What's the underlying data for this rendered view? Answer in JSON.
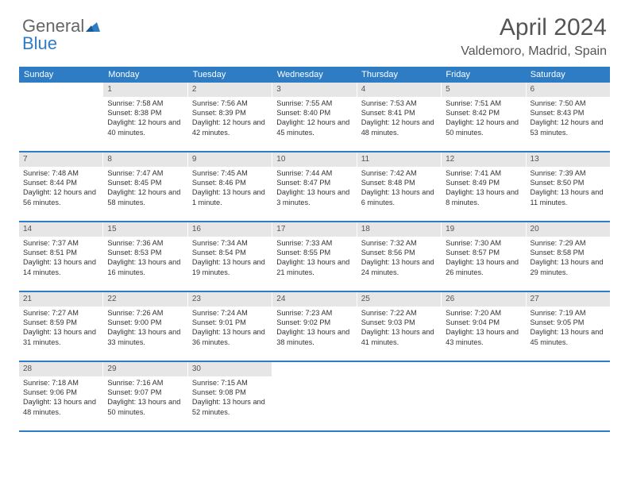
{
  "logo": {
    "part1": "General",
    "part2": "Blue"
  },
  "title": "April 2024",
  "location": "Valdemoro, Madrid, Spain",
  "dayHeaders": [
    "Sunday",
    "Monday",
    "Tuesday",
    "Wednesday",
    "Thursday",
    "Friday",
    "Saturday"
  ],
  "colors": {
    "brand": "#2e7cc4",
    "dayNumBg": "#e6e6e6",
    "text": "#333"
  },
  "weeks": [
    [
      {
        "n": "",
        "sr": "",
        "ss": "",
        "dl": ""
      },
      {
        "n": "1",
        "sr": "Sunrise: 7:58 AM",
        "ss": "Sunset: 8:38 PM",
        "dl": "Daylight: 12 hours and 40 minutes."
      },
      {
        "n": "2",
        "sr": "Sunrise: 7:56 AM",
        "ss": "Sunset: 8:39 PM",
        "dl": "Daylight: 12 hours and 42 minutes."
      },
      {
        "n": "3",
        "sr": "Sunrise: 7:55 AM",
        "ss": "Sunset: 8:40 PM",
        "dl": "Daylight: 12 hours and 45 minutes."
      },
      {
        "n": "4",
        "sr": "Sunrise: 7:53 AM",
        "ss": "Sunset: 8:41 PM",
        "dl": "Daylight: 12 hours and 48 minutes."
      },
      {
        "n": "5",
        "sr": "Sunrise: 7:51 AM",
        "ss": "Sunset: 8:42 PM",
        "dl": "Daylight: 12 hours and 50 minutes."
      },
      {
        "n": "6",
        "sr": "Sunrise: 7:50 AM",
        "ss": "Sunset: 8:43 PM",
        "dl": "Daylight: 12 hours and 53 minutes."
      }
    ],
    [
      {
        "n": "7",
        "sr": "Sunrise: 7:48 AM",
        "ss": "Sunset: 8:44 PM",
        "dl": "Daylight: 12 hours and 56 minutes."
      },
      {
        "n": "8",
        "sr": "Sunrise: 7:47 AM",
        "ss": "Sunset: 8:45 PM",
        "dl": "Daylight: 12 hours and 58 minutes."
      },
      {
        "n": "9",
        "sr": "Sunrise: 7:45 AM",
        "ss": "Sunset: 8:46 PM",
        "dl": "Daylight: 13 hours and 1 minute."
      },
      {
        "n": "10",
        "sr": "Sunrise: 7:44 AM",
        "ss": "Sunset: 8:47 PM",
        "dl": "Daylight: 13 hours and 3 minutes."
      },
      {
        "n": "11",
        "sr": "Sunrise: 7:42 AM",
        "ss": "Sunset: 8:48 PM",
        "dl": "Daylight: 13 hours and 6 minutes."
      },
      {
        "n": "12",
        "sr": "Sunrise: 7:41 AM",
        "ss": "Sunset: 8:49 PM",
        "dl": "Daylight: 13 hours and 8 minutes."
      },
      {
        "n": "13",
        "sr": "Sunrise: 7:39 AM",
        "ss": "Sunset: 8:50 PM",
        "dl": "Daylight: 13 hours and 11 minutes."
      }
    ],
    [
      {
        "n": "14",
        "sr": "Sunrise: 7:37 AM",
        "ss": "Sunset: 8:51 PM",
        "dl": "Daylight: 13 hours and 14 minutes."
      },
      {
        "n": "15",
        "sr": "Sunrise: 7:36 AM",
        "ss": "Sunset: 8:53 PM",
        "dl": "Daylight: 13 hours and 16 minutes."
      },
      {
        "n": "16",
        "sr": "Sunrise: 7:34 AM",
        "ss": "Sunset: 8:54 PM",
        "dl": "Daylight: 13 hours and 19 minutes."
      },
      {
        "n": "17",
        "sr": "Sunrise: 7:33 AM",
        "ss": "Sunset: 8:55 PM",
        "dl": "Daylight: 13 hours and 21 minutes."
      },
      {
        "n": "18",
        "sr": "Sunrise: 7:32 AM",
        "ss": "Sunset: 8:56 PM",
        "dl": "Daylight: 13 hours and 24 minutes."
      },
      {
        "n": "19",
        "sr": "Sunrise: 7:30 AM",
        "ss": "Sunset: 8:57 PM",
        "dl": "Daylight: 13 hours and 26 minutes."
      },
      {
        "n": "20",
        "sr": "Sunrise: 7:29 AM",
        "ss": "Sunset: 8:58 PM",
        "dl": "Daylight: 13 hours and 29 minutes."
      }
    ],
    [
      {
        "n": "21",
        "sr": "Sunrise: 7:27 AM",
        "ss": "Sunset: 8:59 PM",
        "dl": "Daylight: 13 hours and 31 minutes."
      },
      {
        "n": "22",
        "sr": "Sunrise: 7:26 AM",
        "ss": "Sunset: 9:00 PM",
        "dl": "Daylight: 13 hours and 33 minutes."
      },
      {
        "n": "23",
        "sr": "Sunrise: 7:24 AM",
        "ss": "Sunset: 9:01 PM",
        "dl": "Daylight: 13 hours and 36 minutes."
      },
      {
        "n": "24",
        "sr": "Sunrise: 7:23 AM",
        "ss": "Sunset: 9:02 PM",
        "dl": "Daylight: 13 hours and 38 minutes."
      },
      {
        "n": "25",
        "sr": "Sunrise: 7:22 AM",
        "ss": "Sunset: 9:03 PM",
        "dl": "Daylight: 13 hours and 41 minutes."
      },
      {
        "n": "26",
        "sr": "Sunrise: 7:20 AM",
        "ss": "Sunset: 9:04 PM",
        "dl": "Daylight: 13 hours and 43 minutes."
      },
      {
        "n": "27",
        "sr": "Sunrise: 7:19 AM",
        "ss": "Sunset: 9:05 PM",
        "dl": "Daylight: 13 hours and 45 minutes."
      }
    ],
    [
      {
        "n": "28",
        "sr": "Sunrise: 7:18 AM",
        "ss": "Sunset: 9:06 PM",
        "dl": "Daylight: 13 hours and 48 minutes."
      },
      {
        "n": "29",
        "sr": "Sunrise: 7:16 AM",
        "ss": "Sunset: 9:07 PM",
        "dl": "Daylight: 13 hours and 50 minutes."
      },
      {
        "n": "30",
        "sr": "Sunrise: 7:15 AM",
        "ss": "Sunset: 9:08 PM",
        "dl": "Daylight: 13 hours and 52 minutes."
      },
      {
        "n": "",
        "sr": "",
        "ss": "",
        "dl": ""
      },
      {
        "n": "",
        "sr": "",
        "ss": "",
        "dl": ""
      },
      {
        "n": "",
        "sr": "",
        "ss": "",
        "dl": ""
      },
      {
        "n": "",
        "sr": "",
        "ss": "",
        "dl": ""
      }
    ]
  ]
}
